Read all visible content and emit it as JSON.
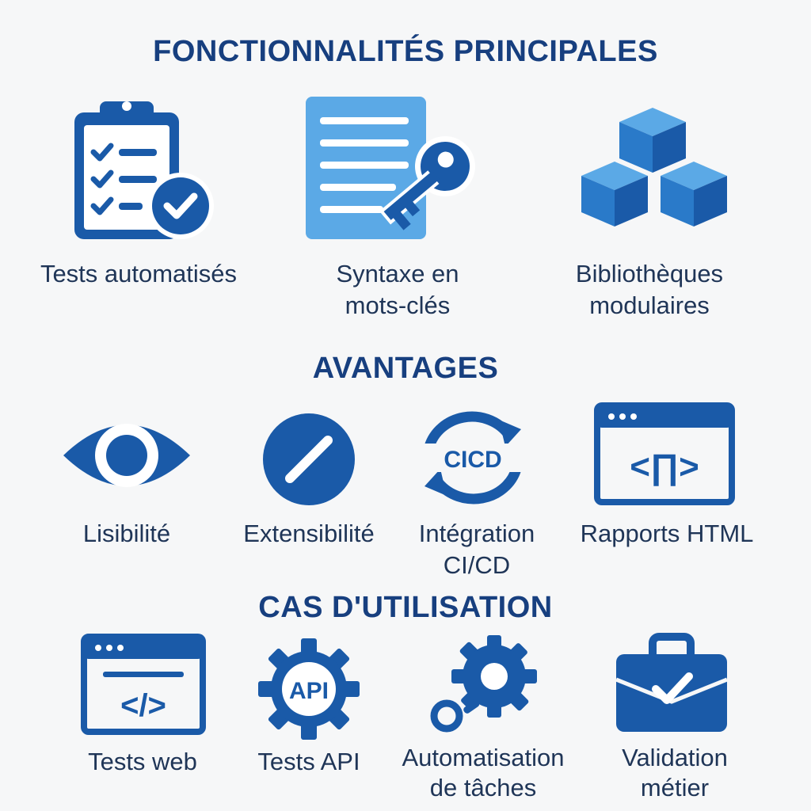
{
  "sections": [
    {
      "title": "FONCTIONNALITÉS PRINCIPALES",
      "items": [
        {
          "icon": "clipboard-check-icon",
          "label": "Tests automatisés"
        },
        {
          "icon": "document-key-icon",
          "label": "Syntaxe en\nmots-clés"
        },
        {
          "icon": "cubes-icon",
          "label": "Bibliothèques\nmodulaires"
        }
      ]
    },
    {
      "title": "AVANTAGES",
      "items": [
        {
          "icon": "eye-icon",
          "label": "Lisibilité"
        },
        {
          "icon": "slash-circle-icon",
          "label": "Extensibilité"
        },
        {
          "icon": "cicd-cycle-icon",
          "icon_text": "CICD",
          "label": "Intégration\nCI/CD"
        },
        {
          "icon": "browser-code-icon",
          "icon_text": "<∏>",
          "label": "Rapports HTML"
        }
      ]
    },
    {
      "title": "CAS D'UTILISATION",
      "items": [
        {
          "icon": "web-code-window-icon",
          "icon_text": "</>",
          "label": "Tests web"
        },
        {
          "icon": "api-gear-icon",
          "icon_text": "API",
          "label": "Tests API"
        },
        {
          "icon": "gear-automation-icon",
          "label": "Automatisation\nde tâches"
        },
        {
          "icon": "briefcase-check-icon",
          "label": "Validation\nmétier"
        }
      ]
    }
  ],
  "colors": {
    "primary": "#1a5aa8",
    "light": "#5ba9e6",
    "mid": "#2a7ac9",
    "title": "#173f7f",
    "text": "#1f3557",
    "background": "#f6f7f8"
  }
}
